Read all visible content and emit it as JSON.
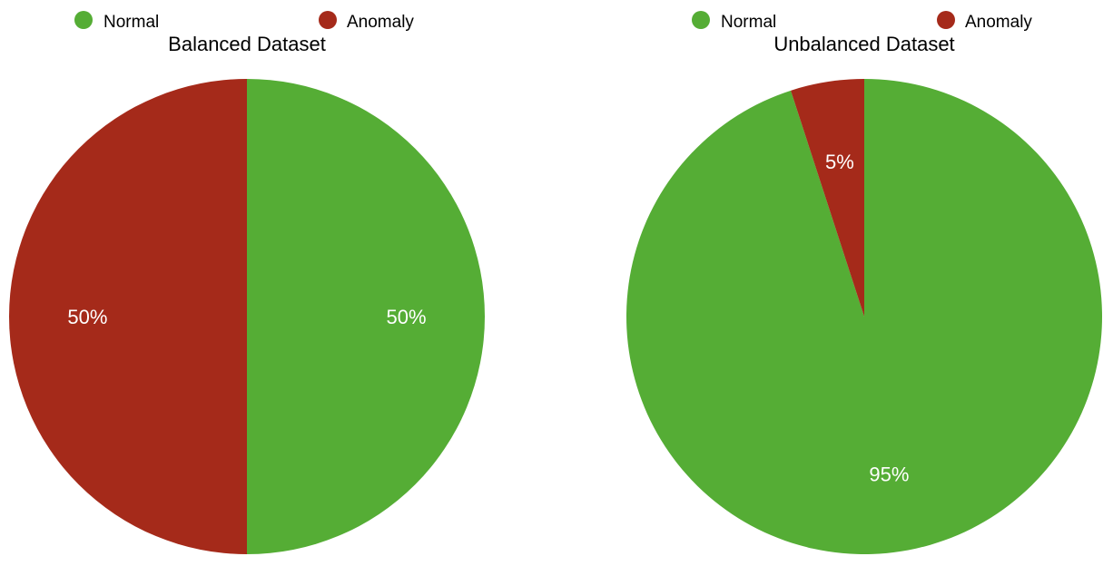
{
  "chart_data": [
    {
      "type": "pie",
      "title": "Balanced Dataset",
      "legend": [
        "Normal",
        "Anomaly"
      ],
      "legend_position": "top",
      "start_angle_deg": 0,
      "direction": "clockwise",
      "slices": [
        {
          "label": "Normal",
          "value": 50,
          "display": "50%",
          "color": "#55ad35"
        },
        {
          "label": "Anomaly",
          "value": 50,
          "display": "50%",
          "color": "#a52a1a"
        }
      ]
    },
    {
      "type": "pie",
      "title": "Unbalanced Dataset",
      "legend": [
        "Normal",
        "Anomaly"
      ],
      "legend_position": "top",
      "start_angle_deg": 0,
      "direction": "clockwise",
      "slices": [
        {
          "label": "Normal",
          "value": 95,
          "display": "95%",
          "color": "#55ad35"
        },
        {
          "label": "Anomaly",
          "value": 5,
          "display": "5%",
          "color": "#a52a1a"
        }
      ]
    }
  ]
}
